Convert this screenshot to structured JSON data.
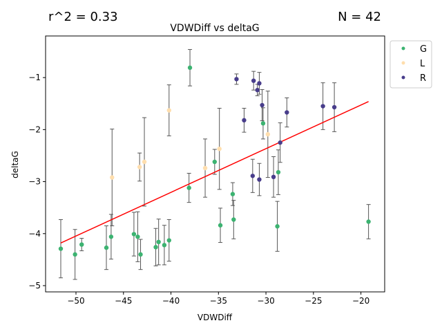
{
  "header": {
    "r2_label": "r^2 = 0.33",
    "n_label": "N = 42"
  },
  "chart_data": {
    "type": "scatter",
    "title": "VDWDiff vs deltaG",
    "xlabel": "VDWDiff",
    "ylabel": "deltaG",
    "xlim": [
      -53.2,
      -17.5
    ],
    "ylim": [
      -5.12,
      -0.2
    ],
    "xticks": [
      -50,
      -45,
      -40,
      -35,
      -30,
      -25,
      -20
    ],
    "yticks": [
      -5,
      -4,
      -3,
      -2,
      -1
    ],
    "grid": false,
    "legend_position": "outside-top-right",
    "colors": {
      "G": "#3cb371",
      "L": "#ffdead",
      "R": "#483d8b",
      "fit": "#ff0000",
      "errorbar": "#555555"
    },
    "series": [
      {
        "name": "G",
        "points": [
          {
            "x": -51.6,
            "y": -4.29,
            "err": 0.56
          },
          {
            "x": -50.1,
            "y": -4.4,
            "err": 0.48
          },
          {
            "x": -49.4,
            "y": -4.21,
            "err": 0.12
          },
          {
            "x": -46.8,
            "y": -4.27,
            "err": 0.42
          },
          {
            "x": -46.3,
            "y": -4.06,
            "err": 0.43
          },
          {
            "x": -43.9,
            "y": -4.01,
            "err": 0.42
          },
          {
            "x": -43.5,
            "y": -4.06,
            "err": 0.48
          },
          {
            "x": -43.2,
            "y": -4.4,
            "err": 0.29
          },
          {
            "x": -41.6,
            "y": -4.26,
            "err": 0.36
          },
          {
            "x": -41.3,
            "y": -4.16,
            "err": 0.44
          },
          {
            "x": -40.7,
            "y": -4.22,
            "err": 0.38
          },
          {
            "x": -40.2,
            "y": -4.13,
            "err": 0.4
          },
          {
            "x": -38.0,
            "y": -0.81,
            "err": 0.35
          },
          {
            "x": -38.1,
            "y": -3.12,
            "err": 0.28
          },
          {
            "x": -35.4,
            "y": -2.62,
            "err": 0.24
          },
          {
            "x": -34.8,
            "y": -3.84,
            "err": 0.33
          },
          {
            "x": -33.5,
            "y": -3.24,
            "err": 0.22
          },
          {
            "x": -33.4,
            "y": -3.73,
            "err": 0.37
          },
          {
            "x": -30.3,
            "y": -1.88,
            "err": 0.3
          },
          {
            "x": -28.8,
            "y": -3.86,
            "err": 0.48
          },
          {
            "x": -28.7,
            "y": -2.82,
            "err": 0.43
          },
          {
            "x": -19.2,
            "y": -3.77,
            "err": 0.33
          }
        ]
      },
      {
        "name": "L",
        "points": [
          {
            "x": -46.2,
            "y": -2.92,
            "err": 0.93
          },
          {
            "x": -43.3,
            "y": -2.72,
            "err": 0.27
          },
          {
            "x": -42.8,
            "y": -2.62,
            "err": 0.85
          },
          {
            "x": -40.2,
            "y": -1.63,
            "err": 0.49
          },
          {
            "x": -36.4,
            "y": -2.74,
            "err": 0.56
          },
          {
            "x": -34.9,
            "y": -2.37,
            "err": 0.78
          },
          {
            "x": -29.8,
            "y": -2.09,
            "err": 0.83
          }
        ]
      },
      {
        "name": "R",
        "points": [
          {
            "x": -33.1,
            "y": -1.03,
            "err": 0.1
          },
          {
            "x": -32.3,
            "y": -1.82,
            "err": 0.23
          },
          {
            "x": -31.4,
            "y": -2.89,
            "err": 0.32
          },
          {
            "x": -31.3,
            "y": -1.06,
            "err": 0.18
          },
          {
            "x": -30.9,
            "y": -1.24,
            "err": 0.11
          },
          {
            "x": -30.7,
            "y": -1.11,
            "err": 0.21
          },
          {
            "x": -30.7,
            "y": -2.96,
            "err": 0.31
          },
          {
            "x": -30.4,
            "y": -1.53,
            "err": 0.3
          },
          {
            "x": -29.2,
            "y": -2.91,
            "err": 0.39
          },
          {
            "x": -28.5,
            "y": -2.25,
            "err": 0.38
          },
          {
            "x": -27.8,
            "y": -1.67,
            "err": 0.28
          },
          {
            "x": -24.0,
            "y": -1.55,
            "err": 0.45
          },
          {
            "x": -22.8,
            "y": -1.57,
            "err": 0.47
          }
        ]
      }
    ],
    "fit_line": {
      "x": [
        -51.6,
        -19.2
      ],
      "y": [
        -4.18,
        -1.46
      ]
    }
  }
}
